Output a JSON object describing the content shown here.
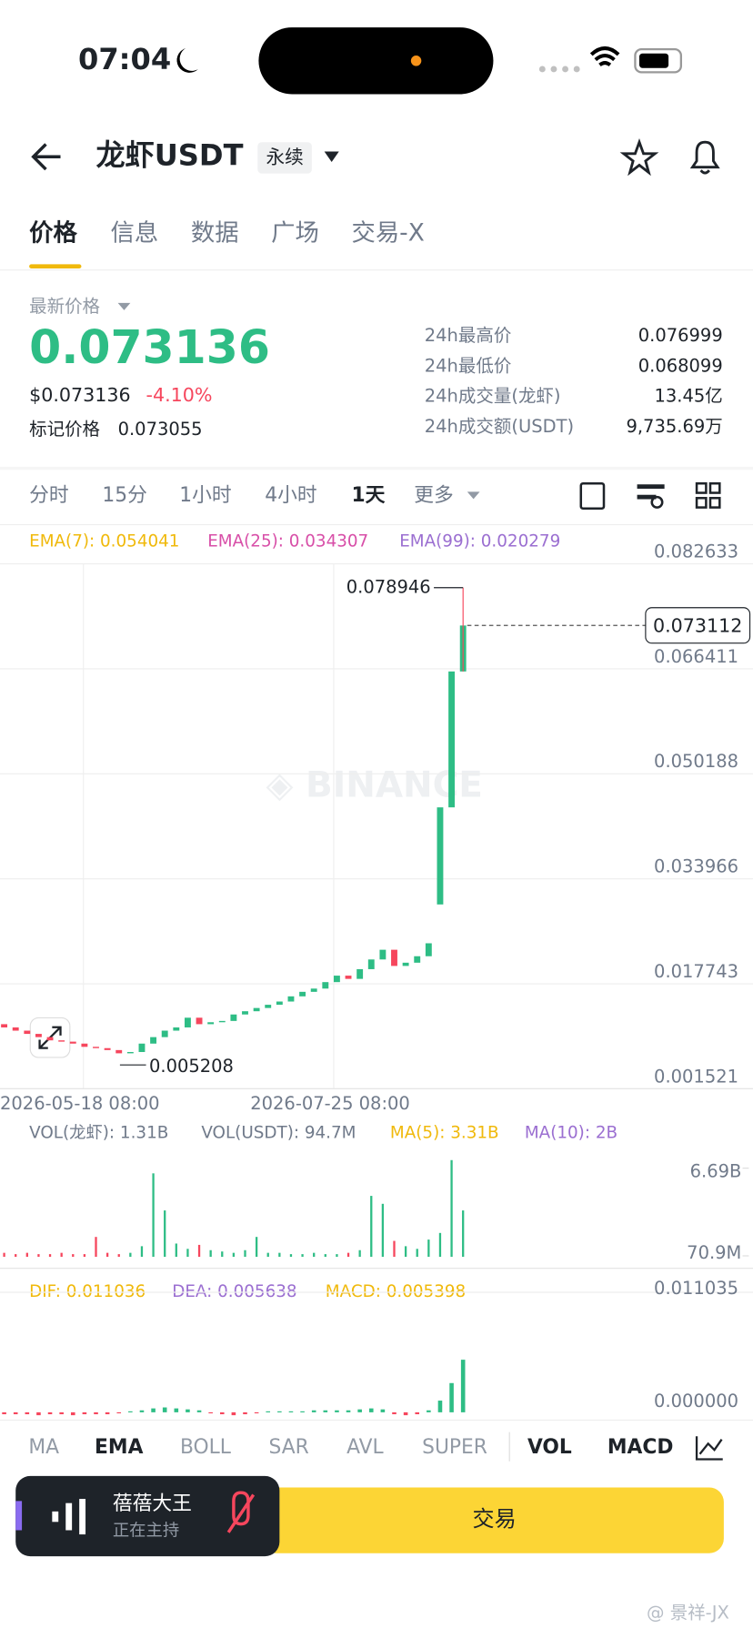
{
  "status": {
    "time": "07:04"
  },
  "header": {
    "title": "龙虾USDT",
    "badge": "永续"
  },
  "tabs": [
    "价格",
    "信息",
    "数据",
    "广场",
    "交易-X"
  ],
  "price": {
    "label": "最新价格",
    "last": "0.073136",
    "usd": "$0.073136",
    "change": "-4.10%",
    "mark_label": "标记价格",
    "mark": "0.073055"
  },
  "stats": [
    {
      "label": "24h最高价",
      "value": "0.076999"
    },
    {
      "label": "24h最低价",
      "value": "0.068099"
    },
    {
      "label": "24h成交量(龙虾)",
      "value": "13.45亿"
    },
    {
      "label": "24h成交额(USDT)",
      "value": "9,735.69万"
    }
  ],
  "intervals": [
    "分时",
    "15分",
    "1小时",
    "4小时",
    "1天",
    "更多"
  ],
  "chart_data": [
    {
      "type": "candlestick",
      "legend": [
        "EMA(7): 0.054041",
        "EMA(25): 0.034307",
        "EMA(99): 0.020279"
      ],
      "open": [
        0.0115,
        0.011,
        0.0105,
        0.01,
        0.0095,
        0.009,
        0.0088,
        0.0085,
        0.008,
        0.0078,
        0.0075,
        0.007,
        0.0072,
        0.0085,
        0.0095,
        0.0105,
        0.011,
        0.0125,
        0.0115,
        0.0118,
        0.012,
        0.013,
        0.0135,
        0.014,
        0.0145,
        0.015,
        0.0158,
        0.0165,
        0.017,
        0.018,
        0.019,
        0.0185,
        0.02,
        0.0215,
        0.023,
        0.0205,
        0.021,
        0.022,
        0.03,
        0.045,
        0.066
      ],
      "close": [
        0.011,
        0.0105,
        0.01,
        0.0095,
        0.009,
        0.0088,
        0.0085,
        0.008,
        0.0078,
        0.0075,
        0.007,
        0.0072,
        0.0085,
        0.0095,
        0.0105,
        0.011,
        0.0125,
        0.0115,
        0.0118,
        0.012,
        0.013,
        0.0135,
        0.014,
        0.0145,
        0.015,
        0.0158,
        0.0165,
        0.017,
        0.018,
        0.019,
        0.0185,
        0.02,
        0.0215,
        0.023,
        0.0205,
        0.021,
        0.022,
        0.024,
        0.045,
        0.066,
        0.0731
      ],
      "high": {
        "value": 0.078946,
        "label": "0.078946"
      },
      "low": {
        "value": 0.005208,
        "label": "0.005208"
      },
      "current": {
        "value": 0.073112,
        "label": "0.073112"
      },
      "ylim": [
        0.001521,
        0.082633
      ],
      "yticks": [
        0.082633,
        0.066411,
        0.050188,
        0.033966,
        0.017743,
        0.001521
      ],
      "xticks": [
        "2026-05-18 08:00",
        "2026-07-25 08:00"
      ]
    },
    {
      "type": "bar",
      "legend": [
        "VOL(龙虾): 1.31B",
        "VOL(USDT): 94.7M",
        "MA(5): 3.31B",
        "MA(10): 2B"
      ],
      "values": [
        0.3,
        0.2,
        0.3,
        0.2,
        0.2,
        0.3,
        0.2,
        0.2,
        1.5,
        0.3,
        0.2,
        0.3,
        0.8,
        6.3,
        3.5,
        1.0,
        0.6,
        0.9,
        0.5,
        0.4,
        0.3,
        0.5,
        1.5,
        0.3,
        0.3,
        0.2,
        0.2,
        0.3,
        0.2,
        0.2,
        0.3,
        0.5,
        4.6,
        4.0,
        1.2,
        0.8,
        0.6,
        1.3,
        1.8,
        7.3,
        3.5
      ],
      "yticks": [
        {
          "value": 6.69,
          "label": "6.69B"
        },
        {
          "value": 0.0709,
          "label": "70.9M"
        }
      ]
    },
    {
      "type": "bar",
      "legend": [
        "DIF: 0.011036",
        "DEA: 0.005638",
        "MACD: 0.005398"
      ],
      "values": [
        -0.0002,
        -0.0002,
        -0.0002,
        -0.0003,
        -0.0002,
        -0.0002,
        -0.0003,
        -0.0002,
        -0.0002,
        -0.0002,
        -0.0001,
        0.0001,
        0.0002,
        0.0004,
        0.0005,
        0.0004,
        0.0003,
        0.0002,
        -0.0001,
        -0.0002,
        -0.0003,
        -0.0002,
        -0.0001,
        0.0001,
        0.0001,
        0.0001,
        0.0001,
        0.0002,
        0.0002,
        0.0002,
        0.0002,
        0.0003,
        0.0004,
        0.0003,
        -0.0002,
        -0.0003,
        -0.0002,
        0.0002,
        0.0012,
        0.003,
        0.005398
      ],
      "yticks": [
        0.011035,
        {
          "value": 0,
          "label": "0.000000"
        }
      ]
    }
  ],
  "indicators": [
    "MA",
    "EMA",
    "BOLL",
    "SAR",
    "AVL",
    "SUPER",
    "VOL",
    "MACD"
  ],
  "live": {
    "name": "蓓蓓大王",
    "status": "正在主持"
  },
  "trade": "交易",
  "watermark": "@ 景祥-JX"
}
